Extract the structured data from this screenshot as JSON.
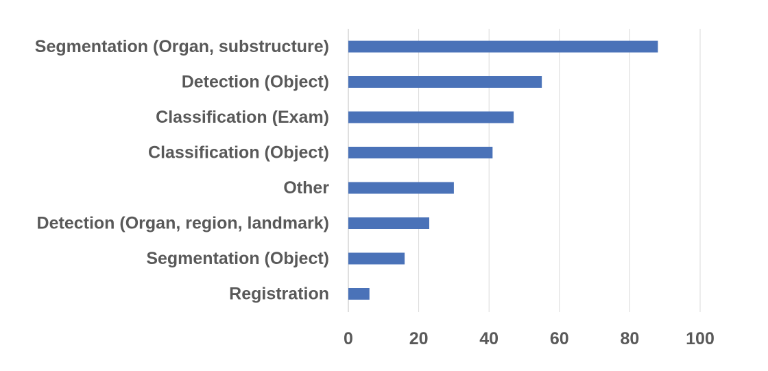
{
  "chart_data": {
    "type": "bar",
    "orientation": "horizontal",
    "categories": [
      "Segmentation (Organ, substructure)",
      "Detection (Object)",
      "Classification (Exam)",
      "Classification (Object)",
      "Other",
      "Detection (Organ, region, landmark)",
      "Segmentation (Object)",
      "Registration"
    ],
    "values": [
      88,
      55,
      47,
      41,
      30,
      23,
      16,
      6
    ],
    "xlim": [
      0,
      100
    ],
    "xticks": [
      0,
      20,
      40,
      60,
      80,
      100
    ],
    "title": "",
    "xlabel": "",
    "ylabel": "",
    "grid": "vertical",
    "legend": "none",
    "colors": {
      "bar": "#4a72b8",
      "grid": "#d9d9d9",
      "text": "#595959"
    }
  }
}
